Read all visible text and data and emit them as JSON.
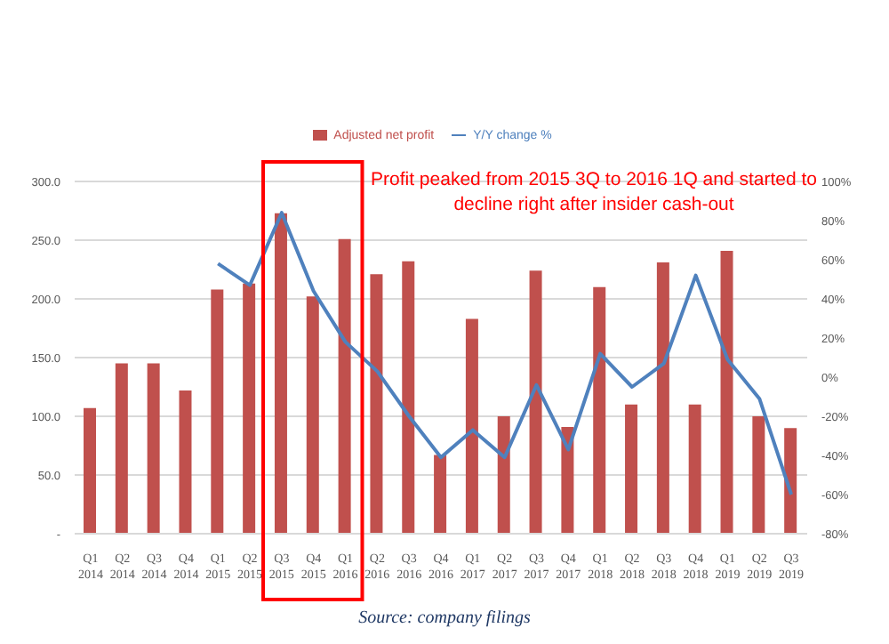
{
  "chart_data": {
    "type": "bar",
    "categories": [
      "Q1 2014",
      "Q2 2014",
      "Q3 2014",
      "Q4 2014",
      "Q1 2015",
      "Q2 2015",
      "Q3 2015",
      "Q4 2015",
      "Q1 2016",
      "Q2 2016",
      "Q3 2016",
      "Q4 2016",
      "Q1 2017",
      "Q2 2017",
      "Q3 2017",
      "Q4 2017",
      "Q1 2018",
      "Q2 2018",
      "Q3 2018",
      "Q4 2018",
      "Q1 2019",
      "Q2 2019",
      "Q3 2019"
    ],
    "series": [
      {
        "name": "Adjusted net profit",
        "color": "#c0504d",
        "values": [
          107,
          145,
          145,
          122,
          208,
          213,
          273,
          202,
          251,
          221,
          232,
          67,
          183,
          100,
          224,
          91,
          210,
          110,
          231,
          110,
          241,
          100,
          90
        ]
      },
      {
        "name": "Y/Y change %",
        "type": "line",
        "axis": "y2",
        "color": "#4f81bd",
        "values": [
          null,
          null,
          null,
          null,
          58,
          47,
          84,
          44,
          18,
          3,
          -20,
          -41,
          -27,
          -41,
          -4,
          -37,
          12,
          -5,
          7,
          52,
          9,
          -11,
          -60
        ]
      }
    ],
    "ylim": [
      0,
      300
    ],
    "yticks": [
      {
        "value": 0,
        "label": "-"
      },
      {
        "value": 50,
        "label": "50.0"
      },
      {
        "value": 100,
        "label": "100.0"
      },
      {
        "value": 150,
        "label": "150.0"
      },
      {
        "value": 200,
        "label": "200.0"
      },
      {
        "value": 250,
        "label": "250.0"
      },
      {
        "value": 300,
        "label": "300.0"
      }
    ],
    "y2lim": [
      -80,
      100
    ],
    "y2ticks": [
      {
        "value": -80,
        "label": "-80%"
      },
      {
        "value": -60,
        "label": "-60%"
      },
      {
        "value": -40,
        "label": "-40%"
      },
      {
        "value": -20,
        "label": "-20%"
      },
      {
        "value": 0,
        "label": "0%"
      },
      {
        "value": 20,
        "label": "20%"
      },
      {
        "value": 40,
        "label": "40%"
      },
      {
        "value": 60,
        "label": "60%"
      },
      {
        "value": 80,
        "label": "80%"
      },
      {
        "value": 100,
        "label": "100%"
      }
    ],
    "grid": "y",
    "legend": "top",
    "marker": "none",
    "annotations": [
      "Profit peaked from 2015 3Q to 2016 1Q and started to decline right after insider cash-out",
      "Source: company filings"
    ]
  }
}
